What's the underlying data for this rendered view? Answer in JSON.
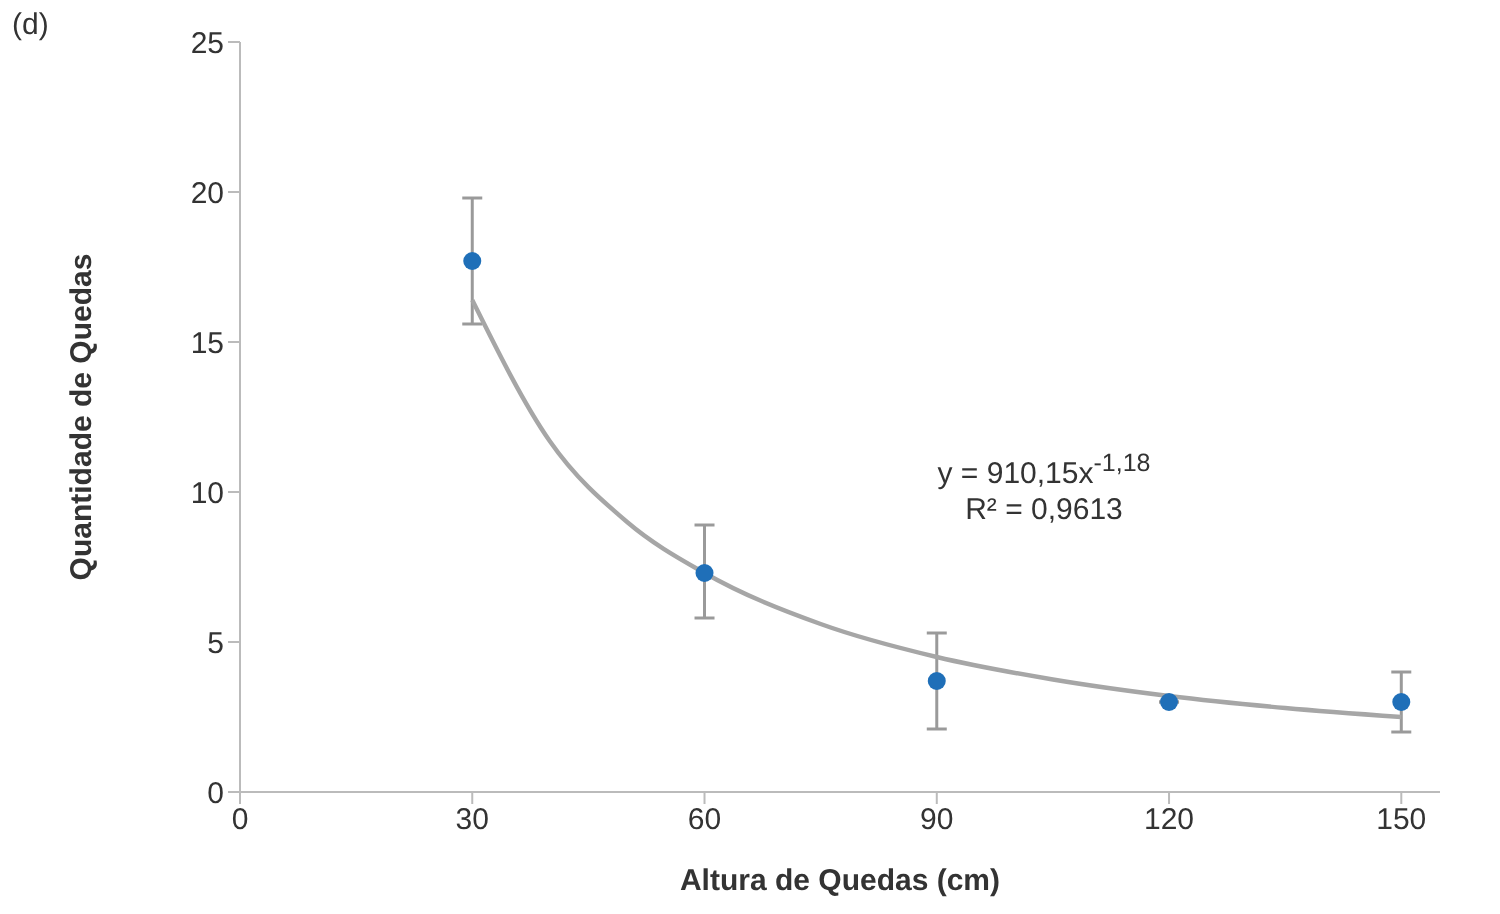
{
  "chart_data": {
    "type": "scatter",
    "xlabel": "Altura de Quedas (cm)",
    "ylabel": "Quantidade de Quedas",
    "x": [
      30,
      60,
      90,
      120,
      150
    ],
    "xlim": [
      0,
      155
    ],
    "xticks": [
      0,
      30,
      60,
      90,
      120,
      150
    ],
    "ylim": [
      0,
      25
    ],
    "yticks": [
      0,
      5,
      10,
      15,
      20,
      25
    ],
    "grid": false,
    "marker": "circle",
    "series": [
      {
        "color": "#1f6fb8",
        "values": [
          17.7,
          7.3,
          3.7,
          3.0,
          3.0
        ],
        "errors": [
          [
            15.6,
            19.8
          ],
          [
            5.8,
            8.9
          ],
          [
            2.1,
            5.3
          ],
          null,
          [
            2.0,
            4.0
          ]
        ]
      },
      {
        "type": "line",
        "color": "#a6a6a6",
        "x": [
          30,
          40,
          50,
          60,
          75,
          90,
          105,
          120,
          135,
          150
        ],
        "values": [
          16.4,
          11.7,
          9.0,
          7.3,
          5.6,
          4.5,
          3.75,
          3.2,
          2.8,
          2.5
        ],
        "line_style": "solid",
        "marker": "none"
      }
    ],
    "annotations": [
      "(d)",
      "y = 910,15x$^{-1,18}$",
      "R² = 0,9613"
    ]
  }
}
